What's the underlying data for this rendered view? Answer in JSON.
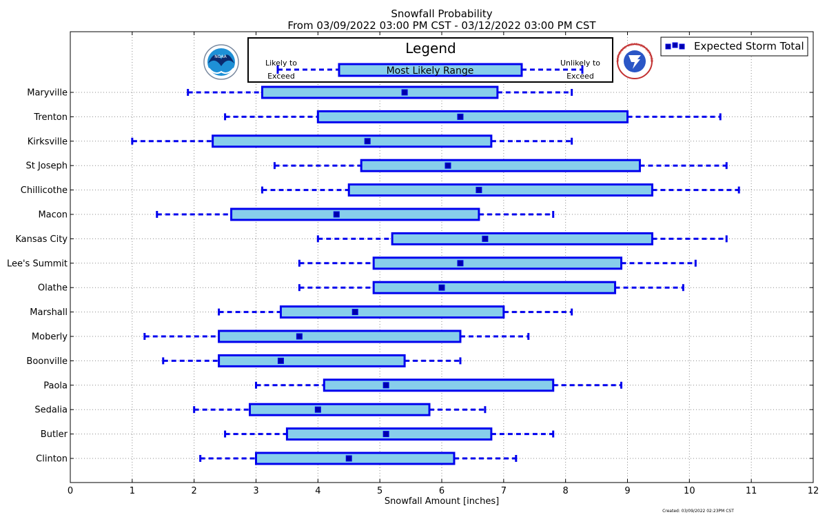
{
  "chart_data": {
    "type": "boxplot",
    "title": "Snowfall Probability",
    "subtitle": "From 03/09/2022 03:00 PM CST - 03/12/2022 03:00 PM CST",
    "xlabel": "Snowfall Amount [inches]",
    "ylabel": "",
    "xlim": [
      0,
      12
    ],
    "x_ticks": [
      "0",
      "1",
      "2",
      "3",
      "4",
      "5",
      "6",
      "7",
      "8",
      "9",
      "10",
      "11",
      "12"
    ],
    "grid": true,
    "legend_position": "top-right",
    "legend_entries": [
      "Expected Storm Total"
    ],
    "inset_legend": {
      "title": "Legend",
      "box_label": "Most Likely Range",
      "left_label_line1": "Likely to",
      "left_label_line2": "Exceed",
      "right_label_line1": "Unlikely to",
      "right_label_line2": "Exceed"
    },
    "created_note": "Created: 03/09/2022 02:23PM CST",
    "colors": {
      "box_fill": "#87ceeb",
      "box_edge": "#0000ee",
      "whisker": "#0000ee",
      "marker": "#0000aa",
      "grid": "#888888"
    },
    "categories": [
      "Maryville",
      "Trenton",
      "Kirksville",
      "St Joseph",
      "Chillicothe",
      "Macon",
      "Kansas City",
      "Lee's Summit",
      "Olathe",
      "Marshall",
      "Moberly",
      "Boonville",
      "Paola",
      "Sedalia",
      "Butler",
      "Clinton"
    ],
    "series": [
      {
        "name": "Expected Storm Total",
        "values": [
          5.4,
          6.3,
          4.8,
          6.1,
          6.6,
          4.3,
          6.7,
          6.3,
          6.0,
          4.6,
          3.7,
          3.4,
          5.1,
          4.0,
          5.1,
          4.5
        ]
      },
      {
        "name": "Likely to Exceed",
        "values": [
          1.9,
          2.5,
          1.0,
          3.3,
          3.1,
          1.4,
          4.0,
          3.7,
          3.7,
          2.4,
          1.2,
          1.5,
          3.0,
          2.0,
          2.5,
          2.1
        ]
      },
      {
        "name": "Most Likely Range Low",
        "values": [
          3.1,
          4.0,
          2.3,
          4.7,
          4.5,
          2.6,
          5.2,
          4.9,
          4.9,
          3.4,
          2.4,
          2.4,
          4.1,
          2.9,
          3.5,
          3.0
        ]
      },
      {
        "name": "Most Likely Range High",
        "values": [
          6.9,
          9.0,
          6.8,
          9.2,
          9.4,
          6.6,
          9.4,
          8.9,
          8.8,
          7.0,
          6.3,
          5.4,
          7.8,
          5.8,
          6.8,
          6.2
        ]
      },
      {
        "name": "Unlikely to Exceed",
        "values": [
          8.1,
          10.5,
          8.1,
          10.6,
          10.8,
          7.8,
          10.6,
          10.1,
          9.9,
          8.1,
          7.4,
          6.3,
          8.9,
          6.7,
          7.8,
          7.2
        ]
      }
    ]
  },
  "logos": {
    "noaa_text": "NOAA",
    "nws_text": "NATIONAL WEATHER SERVICE"
  }
}
